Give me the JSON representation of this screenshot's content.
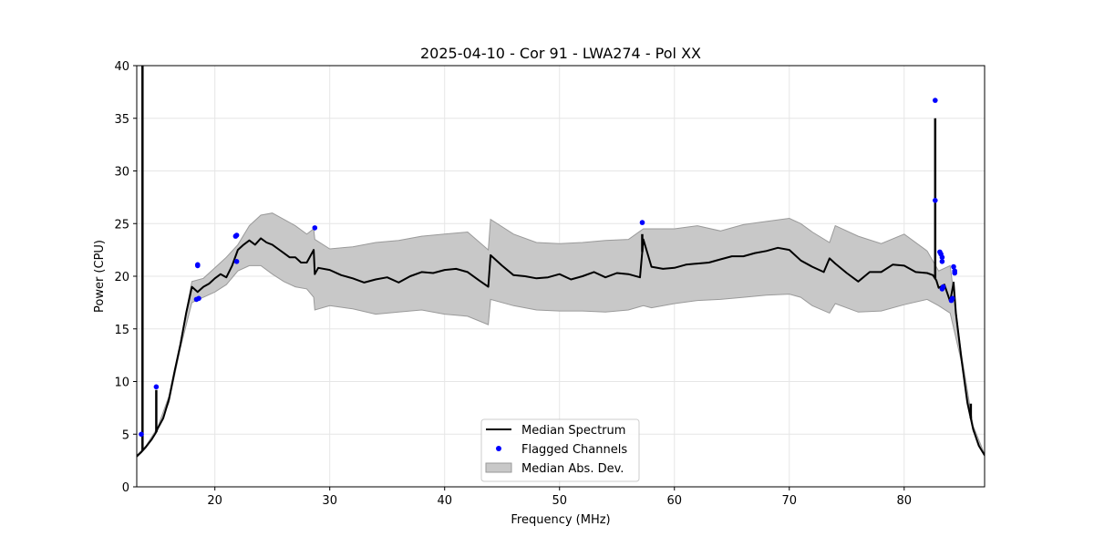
{
  "chart_data": {
    "type": "line",
    "title": "2025-04-10 - Cor 91 - LWA274 - Pol XX",
    "xlabel": "Frequency (MHz)",
    "ylabel": "Power (CPU)",
    "xlim": [
      13.2,
      87.0
    ],
    "ylim": [
      0,
      40
    ],
    "xticks": [
      20,
      30,
      40,
      50,
      60,
      70,
      80
    ],
    "yticks": [
      0,
      5,
      10,
      15,
      20,
      25,
      30,
      35,
      40
    ],
    "grid": true,
    "legend_position": "bottom-center",
    "legend": [
      "Median Spectrum",
      "Flagged Channels",
      "Median Abs. Dev."
    ],
    "colors": {
      "median": "#000000",
      "flagged": "#0000ff",
      "mad_fill": "#c8c8c8",
      "mad_edge": "#9a9a9a",
      "grid": "#e6e6e6"
    },
    "series": [
      {
        "name": "Median Spectrum",
        "x": [
          13.2,
          13.6,
          14.0,
          14.5,
          14.9,
          15.0,
          15.5,
          16.0,
          16.5,
          17.0,
          17.5,
          18.0,
          18.5,
          19.0,
          19.5,
          20.0,
          20.5,
          21.0,
          21.5,
          22.0,
          22.5,
          23.0,
          23.5,
          24.0,
          24.5,
          25.0,
          25.5,
          26.0,
          26.5,
          27.0,
          27.5,
          28.0,
          28.6,
          28.7,
          29.0,
          30.0,
          31.0,
          32.0,
          33.0,
          34.0,
          35.0,
          36.0,
          37.0,
          38.0,
          39.0,
          40.0,
          41.0,
          42.0,
          43.0,
          43.8,
          44.0,
          45.0,
          46.0,
          47.0,
          48.0,
          49.0,
          50.0,
          51.0,
          52.0,
          53.0,
          54.0,
          55.0,
          56.0,
          57.0,
          57.3,
          58.0,
          59.0,
          60.0,
          61.0,
          62.0,
          63.0,
          64.0,
          65.0,
          66.0,
          67.0,
          68.0,
          69.0,
          70.0,
          71.0,
          72.0,
          73.0,
          73.5,
          74.0,
          75.0,
          76.0,
          77.0,
          78.0,
          79.0,
          80.0,
          81.0,
          82.0,
          82.5,
          82.8,
          83.0,
          83.5,
          84.0,
          84.3,
          84.5,
          85.0,
          85.5,
          86.0,
          86.5,
          87.0
        ],
        "values": [
          2.9,
          3.3,
          3.8,
          4.5,
          5.2,
          5.5,
          6.5,
          8.3,
          11.0,
          13.5,
          16.5,
          19.0,
          18.5,
          19.0,
          19.3,
          19.8,
          20.2,
          19.9,
          21.0,
          22.5,
          23.0,
          23.4,
          23.0,
          23.6,
          23.2,
          23.0,
          22.6,
          22.2,
          21.8,
          21.8,
          21.3,
          21.3,
          22.5,
          20.2,
          20.8,
          20.6,
          20.1,
          19.8,
          19.4,
          19.7,
          19.9,
          19.4,
          20.0,
          20.4,
          20.3,
          20.6,
          20.7,
          20.4,
          19.6,
          19.0,
          22.0,
          21.0,
          20.1,
          20.0,
          19.8,
          19.9,
          20.2,
          19.7,
          20.0,
          20.4,
          19.9,
          20.3,
          20.2,
          19.9,
          23.5,
          20.9,
          20.7,
          20.8,
          21.1,
          21.2,
          21.3,
          21.6,
          21.9,
          21.9,
          22.2,
          22.4,
          22.7,
          22.5,
          21.5,
          20.9,
          20.4,
          21.7,
          21.2,
          20.3,
          19.5,
          20.4,
          20.4,
          21.1,
          21.0,
          20.4,
          20.3,
          20.1,
          19.6,
          18.9,
          19.2,
          17.6,
          19.4,
          16.5,
          12.0,
          8.0,
          5.5,
          3.9,
          3.0
        ]
      },
      {
        "name": "Median Abs. Dev.",
        "x": [
          13.2,
          14.0,
          15.0,
          16.0,
          17.0,
          18.0,
          19.0,
          20.0,
          21.0,
          22.0,
          23.0,
          24.0,
          25.0,
          26.0,
          27.0,
          28.0,
          28.6,
          28.7,
          30.0,
          32.0,
          34.0,
          36.0,
          38.0,
          40.0,
          42.0,
          43.8,
          44.0,
          46.0,
          48.0,
          50.0,
          52.0,
          54.0,
          56.0,
          57.3,
          58.0,
          60.0,
          62.0,
          64.0,
          66.0,
          68.0,
          70.0,
          71.0,
          72.0,
          73.5,
          74.0,
          76.0,
          78.0,
          80.0,
          82.0,
          83.0,
          84.0,
          85.0,
          86.0,
          87.0
        ],
        "upper": [
          3.0,
          3.9,
          5.6,
          8.6,
          13.8,
          19.5,
          19.8,
          20.8,
          21.8,
          23.0,
          24.8,
          25.8,
          26.0,
          25.4,
          24.8,
          24.0,
          24.5,
          23.5,
          22.6,
          22.8,
          23.2,
          23.4,
          23.8,
          24.0,
          24.2,
          22.5,
          25.4,
          24.0,
          23.2,
          23.1,
          23.2,
          23.4,
          23.5,
          24.5,
          24.5,
          24.5,
          24.8,
          24.3,
          24.9,
          25.2,
          25.5,
          25.0,
          24.2,
          23.2,
          24.8,
          23.8,
          23.1,
          24.0,
          22.4,
          20.5,
          21.0,
          12.5,
          5.8,
          3.1
        ],
        "lower": [
          2.8,
          3.7,
          5.4,
          8.0,
          13.2,
          17.5,
          18.0,
          18.5,
          19.2,
          20.5,
          21.0,
          21.0,
          20.2,
          19.5,
          19.0,
          18.8,
          18.0,
          16.8,
          17.2,
          16.9,
          16.4,
          16.6,
          16.8,
          16.4,
          16.2,
          15.4,
          17.8,
          17.2,
          16.8,
          16.7,
          16.7,
          16.6,
          16.8,
          17.2,
          17.0,
          17.4,
          17.7,
          17.8,
          18.0,
          18.2,
          18.3,
          18.0,
          17.2,
          16.5,
          17.4,
          16.6,
          16.7,
          17.3,
          17.8,
          17.2,
          16.5,
          11.8,
          5.3,
          2.9
        ]
      },
      {
        "name": "Flagged Channels",
        "x": [
          13.6,
          14.9,
          18.4,
          18.5,
          18.5,
          18.6,
          21.8,
          21.9,
          21.9,
          28.7,
          57.2,
          82.7,
          82.7,
          83.1,
          83.2,
          83.3,
          83.3,
          83.4,
          83.3,
          84.1,
          84.2,
          84.3,
          84.4,
          84.4
        ],
        "values": [
          5.0,
          9.5,
          17.8,
          21.0,
          21.1,
          17.9,
          23.8,
          23.9,
          21.4,
          24.6,
          25.1,
          36.7,
          27.2,
          22.3,
          22.1,
          21.8,
          21.4,
          19.0,
          18.8,
          17.7,
          17.9,
          20.9,
          20.5,
          20.3
        ]
      }
    ],
    "spikes": [
      {
        "x": 13.7,
        "value": 40.0
      },
      {
        "x": 14.9,
        "value": 9.2
      },
      {
        "x": 57.2,
        "value": 24.0
      },
      {
        "x": 82.7,
        "value": 35.0
      },
      {
        "x": 85.8,
        "value": 7.9
      }
    ]
  }
}
